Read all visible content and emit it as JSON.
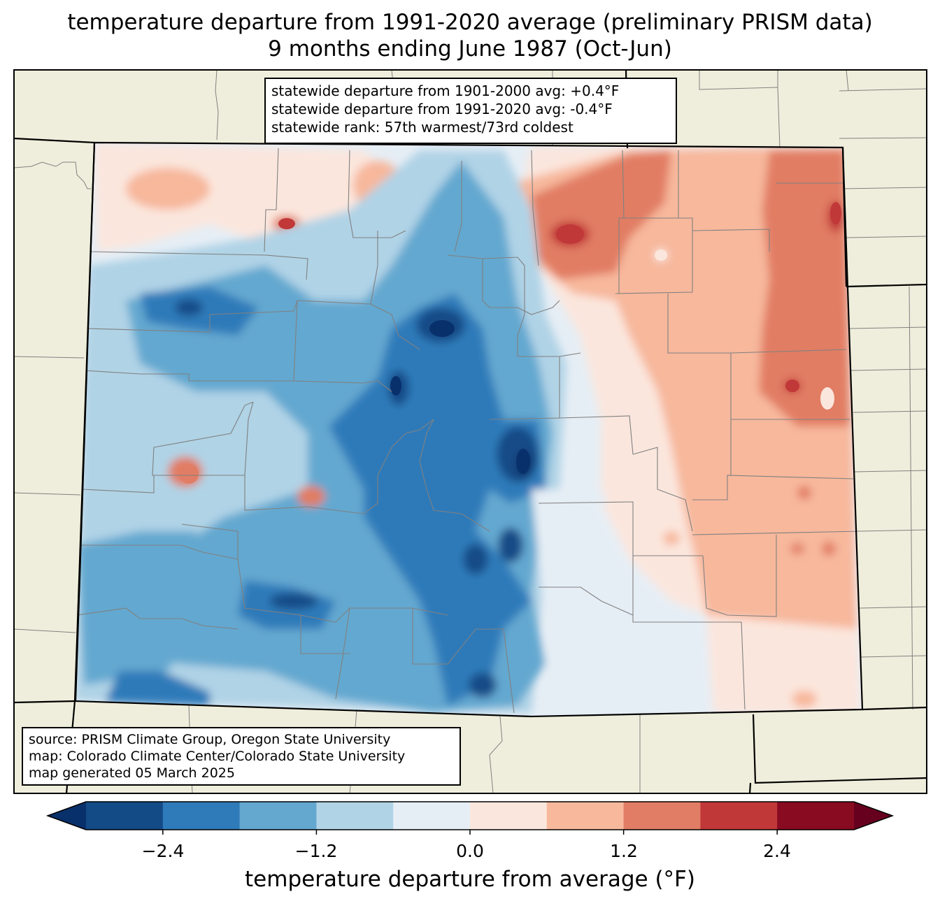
{
  "title": {
    "line1": "temperature departure from 1991-2020 average (preliminary PRISM data)",
    "line2": "9 months ending June 1987 (Oct-Jun)"
  },
  "stats": {
    "line1": "statewide departure from 1901-2000 avg: +0.4°F",
    "line2": "statewide departure from 1991-2020 avg: -0.4°F",
    "line3": "statewide rank: 57th warmest/73rd coldest"
  },
  "source": {
    "line1": "source: PRISM Climate Group, Oregon State University",
    "line2": "map: Colorado Climate Center/Colorado State University",
    "line3": "map generated 05 March 2025"
  },
  "colorbar": {
    "label": "temperature departure from average (°F)",
    "ticks": [
      "−2.4",
      "−1.2",
      "0.0",
      "1.2",
      "2.4"
    ],
    "bounds": [
      -3.0,
      -2.4,
      -1.8,
      -1.2,
      -0.6,
      0.0,
      0.6,
      1.2,
      1.8,
      2.4,
      3.0
    ],
    "colors": [
      "#08306b",
      "#134b87",
      "#2f7ab9",
      "#64a8d0",
      "#b0d3e6",
      "#e6eef5",
      "#fbe6dd",
      "#f7b89c",
      "#e17d64",
      "#c13839",
      "#880b21",
      "#67001f"
    ]
  },
  "map_colors": {
    "land": "#efeedc",
    "state_border": "#000000",
    "county_border": "#808080"
  }
}
